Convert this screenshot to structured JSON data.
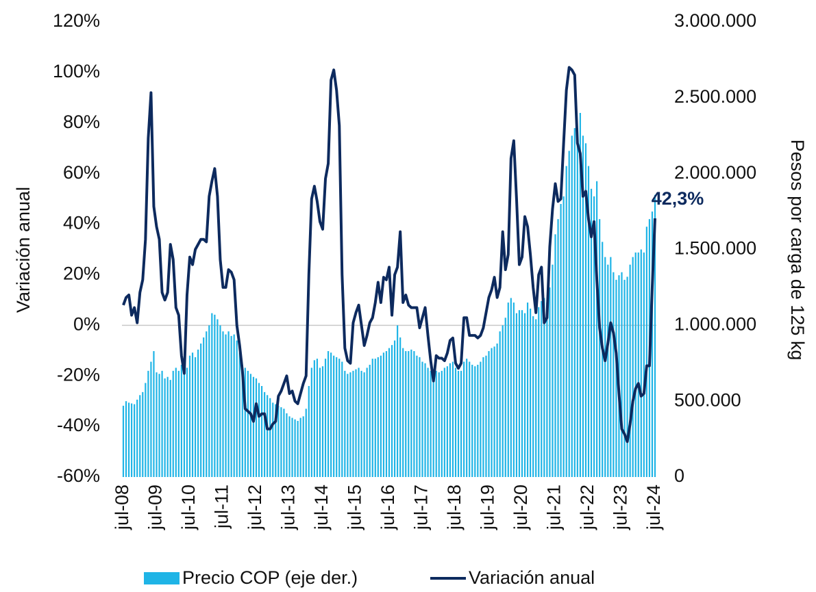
{
  "chart_data": {
    "type": "combo",
    "ylabel": "Variación anual",
    "y2label": "Pesos por carga de 125 kg",
    "categories": [
      "jul-08",
      null,
      null,
      null,
      null,
      null,
      null,
      null,
      null,
      null,
      null,
      null,
      "jul-09",
      null,
      null,
      null,
      null,
      null,
      null,
      null,
      null,
      null,
      null,
      null,
      "jul-10",
      null,
      null,
      null,
      null,
      null,
      null,
      null,
      null,
      null,
      null,
      null,
      "jul-11",
      null,
      null,
      null,
      null,
      null,
      null,
      null,
      null,
      null,
      null,
      null,
      "jul-12",
      null,
      null,
      null,
      null,
      null,
      null,
      null,
      null,
      null,
      null,
      null,
      "jul-13",
      null,
      null,
      null,
      null,
      null,
      null,
      null,
      null,
      null,
      null,
      null,
      "jul-14",
      null,
      null,
      null,
      null,
      null,
      null,
      null,
      null,
      null,
      null,
      null,
      "jul-15",
      null,
      null,
      null,
      null,
      null,
      null,
      null,
      null,
      null,
      null,
      null,
      "jul-16",
      null,
      null,
      null,
      null,
      null,
      null,
      null,
      null,
      null,
      null,
      null,
      "jul-17",
      null,
      null,
      null,
      null,
      null,
      null,
      null,
      null,
      null,
      null,
      null,
      "jul-18",
      null,
      null,
      null,
      null,
      null,
      null,
      null,
      null,
      null,
      null,
      null,
      "jul-19",
      null,
      null,
      null,
      null,
      null,
      null,
      null,
      null,
      null,
      null,
      null,
      "jul-20",
      null,
      null,
      null,
      null,
      null,
      null,
      null,
      null,
      null,
      null,
      null,
      "jul-21",
      null,
      null,
      null,
      null,
      null,
      null,
      null,
      null,
      null,
      null,
      null,
      "jul-22",
      null,
      null,
      null,
      null,
      null,
      null,
      null,
      null,
      null,
      null,
      null,
      "jul-23",
      null,
      null,
      null,
      null,
      null,
      null,
      null,
      null,
      null,
      null,
      null,
      "jul-24"
    ],
    "series": [
      {
        "name": "Precio COP (eje der.)",
        "type": "bar",
        "axis": "y2",
        "color": "#1fb4e6",
        "values": [
          470000,
          500000,
          490000,
          485000,
          480000,
          510000,
          540000,
          560000,
          620000,
          700000,
          760000,
          830000,
          690000,
          680000,
          700000,
          650000,
          660000,
          640000,
          700000,
          720000,
          700000,
          740000,
          720000,
          720000,
          800000,
          820000,
          790000,
          840000,
          880000,
          920000,
          960000,
          1000000,
          1080000,
          1070000,
          1040000,
          1000000,
          960000,
          940000,
          960000,
          930000,
          940000,
          900000,
          820000,
          740000,
          720000,
          700000,
          680000,
          660000,
          650000,
          620000,
          600000,
          560000,
          540000,
          520000,
          490000,
          480000,
          470000,
          460000,
          450000,
          420000,
          400000,
          390000,
          380000,
          370000,
          390000,
          400000,
          450000,
          600000,
          720000,
          770000,
          780000,
          720000,
          730000,
          780000,
          830000,
          820000,
          800000,
          790000,
          780000,
          760000,
          700000,
          680000,
          690000,
          700000,
          710000,
          720000,
          700000,
          690000,
          720000,
          740000,
          780000,
          780000,
          790000,
          800000,
          820000,
          830000,
          850000,
          870000,
          900000,
          1000000,
          920000,
          850000,
          830000,
          830000,
          840000,
          830000,
          800000,
          790000,
          760000,
          750000,
          720000,
          700000,
          700000,
          700000,
          690000,
          700000,
          720000,
          730000,
          750000,
          760000,
          720000,
          700000,
          700000,
          760000,
          780000,
          760000,
          740000,
          730000,
          740000,
          760000,
          790000,
          800000,
          830000,
          850000,
          860000,
          880000,
          960000,
          1000000,
          1050000,
          1150000,
          1180000,
          1150000,
          1080000,
          1100000,
          1100000,
          1080000,
          1150000,
          1110000,
          1060000,
          1040000,
          1120000,
          1160000,
          1180000,
          1150000,
          1250000,
          1400000,
          1600000,
          1700000,
          1800000,
          1850000,
          2050000,
          2150000,
          2250000,
          2300000,
          2300000,
          2400000,
          2250000,
          2200000,
          2050000,
          1900000,
          1850000,
          1950000,
          1700000,
          1550000,
          1450000,
          1400000,
          1450000,
          1350000,
          1300000,
          1330000,
          1350000,
          1300000,
          1320000,
          1400000,
          1450000,
          1480000,
          1480000,
          1500000,
          1480000,
          1650000,
          1700000,
          1750000,
          1860000
        ]
      },
      {
        "name": "Variación anual",
        "type": "line",
        "axis": "y",
        "color": "#0d2a5e",
        "values": [
          8,
          11,
          12,
          4,
          7,
          1,
          13,
          18,
          34,
          74,
          92,
          47,
          39,
          34,
          13,
          10,
          13,
          32,
          26,
          7,
          4,
          -12,
          -19,
          12,
          27,
          24,
          30,
          32,
          34,
          34,
          33,
          51,
          57,
          62,
          51,
          26,
          15,
          15,
          22,
          21,
          18,
          0,
          -8,
          -18,
          -33,
          -34,
          -35,
          -38,
          -31,
          -36,
          -35,
          -35,
          -41,
          -41,
          -39,
          -38,
          -28,
          -26,
          -23,
          -20,
          -27,
          -26,
          -30,
          -31,
          -27,
          -23,
          -20,
          20,
          50,
          55,
          49,
          41,
          38,
          58,
          64,
          97,
          101,
          93,
          79,
          20,
          -9,
          -14,
          -15,
          1,
          5,
          8,
          0,
          -8,
          -4,
          1,
          3,
          9,
          17,
          9,
          19,
          18,
          23,
          4,
          20,
          23,
          37,
          9,
          12,
          8,
          7,
          7,
          7,
          -1,
          3,
          7,
          -4,
          -14,
          -22,
          -12,
          -13,
          -13,
          -14,
          -11,
          -6,
          -5,
          -15,
          -17,
          -15,
          3,
          3,
          -4,
          -4,
          -4,
          -5,
          -4,
          -1,
          5,
          11,
          14,
          19,
          11,
          15,
          37,
          22,
          28,
          66,
          73,
          50,
          24,
          27,
          43,
          39,
          28,
          15,
          5,
          20,
          23,
          1,
          3,
          31,
          46,
          56,
          49,
          50,
          72,
          93,
          102,
          101,
          99,
          72,
          68,
          51,
          53,
          42,
          35,
          41,
          18,
          -1,
          -9,
          -14,
          -7,
          1,
          -3,
          -11,
          -27,
          -41,
          -43,
          -46,
          -39,
          -30,
          -25,
          -23,
          -28,
          -27,
          -16,
          -16,
          15,
          42.3
        ],
        "value_labels": [
          null,
          null,
          null,
          null,
          null,
          null,
          null,
          null,
          null,
          null,
          null,
          null,
          null,
          null,
          null,
          null,
          null,
          null,
          null,
          null,
          null,
          null,
          null,
          null,
          null,
          null,
          null,
          null,
          null,
          null,
          null,
          null,
          null,
          null,
          null,
          null,
          null,
          null,
          null,
          null,
          null,
          null,
          null,
          null,
          null,
          null,
          null,
          null,
          null,
          null,
          null,
          null,
          null,
          null,
          null,
          null,
          null,
          null,
          null,
          null,
          null,
          null,
          null,
          null,
          null,
          null,
          null,
          null,
          null,
          null,
          null,
          null,
          null,
          null,
          null,
          null,
          null,
          null,
          null,
          null,
          null,
          null,
          null,
          null,
          null,
          null,
          null,
          null,
          null,
          null,
          null,
          null,
          null,
          null,
          null,
          null,
          null,
          null,
          null,
          null,
          null,
          null,
          null,
          null,
          null,
          null,
          null,
          null,
          null,
          null,
          null,
          null,
          null,
          null,
          null,
          null,
          null,
          null,
          null,
          null,
          null,
          null,
          null,
          null,
          null,
          null,
          null,
          null,
          null,
          null,
          null,
          null,
          null,
          null,
          null,
          null,
          null,
          null,
          null,
          null,
          null,
          null,
          null,
          null,
          null,
          null,
          null,
          null,
          null,
          null,
          null,
          null,
          null,
          null,
          null,
          null,
          null,
          null,
          null,
          null,
          null,
          null,
          null,
          null,
          null,
          null,
          null,
          null,
          null,
          null,
          null,
          null,
          null,
          null,
          null,
          null,
          null,
          null,
          null,
          null,
          null,
          null,
          null,
          null,
          null,
          null,
          null,
          null,
          null,
          null,
          null,
          null,
          "42,3%"
        ]
      }
    ],
    "ylim": [
      -60,
      120
    ],
    "yticks": [
      {
        "value": -60,
        "label": "-60%"
      },
      {
        "value": -40,
        "label": "-40%"
      },
      {
        "value": -20,
        "label": "-20%"
      },
      {
        "value": 0,
        "label": "0%"
      },
      {
        "value": 20,
        "label": "20%"
      },
      {
        "value": 40,
        "label": "40%"
      },
      {
        "value": 60,
        "label": "60%"
      },
      {
        "value": 80,
        "label": "80%"
      },
      {
        "value": 100,
        "label": "100%"
      },
      {
        "value": 120,
        "label": "120%"
      }
    ],
    "y2lim": [
      0,
      3000000
    ],
    "y2ticks": [
      0,
      {
        "value": 500000,
        "label": "500.000"
      },
      {
        "value": 1000000,
        "label": "1.000.000"
      },
      {
        "value": 1500000,
        "label": "1.500.000"
      },
      {
        "value": 2000000,
        "label": "2.000.000"
      },
      {
        "value": 2500000,
        "label": "2.500.000"
      },
      {
        "value": 3000000,
        "label": "3.000.000"
      }
    ],
    "zero_line": true,
    "legend": "bottom"
  }
}
